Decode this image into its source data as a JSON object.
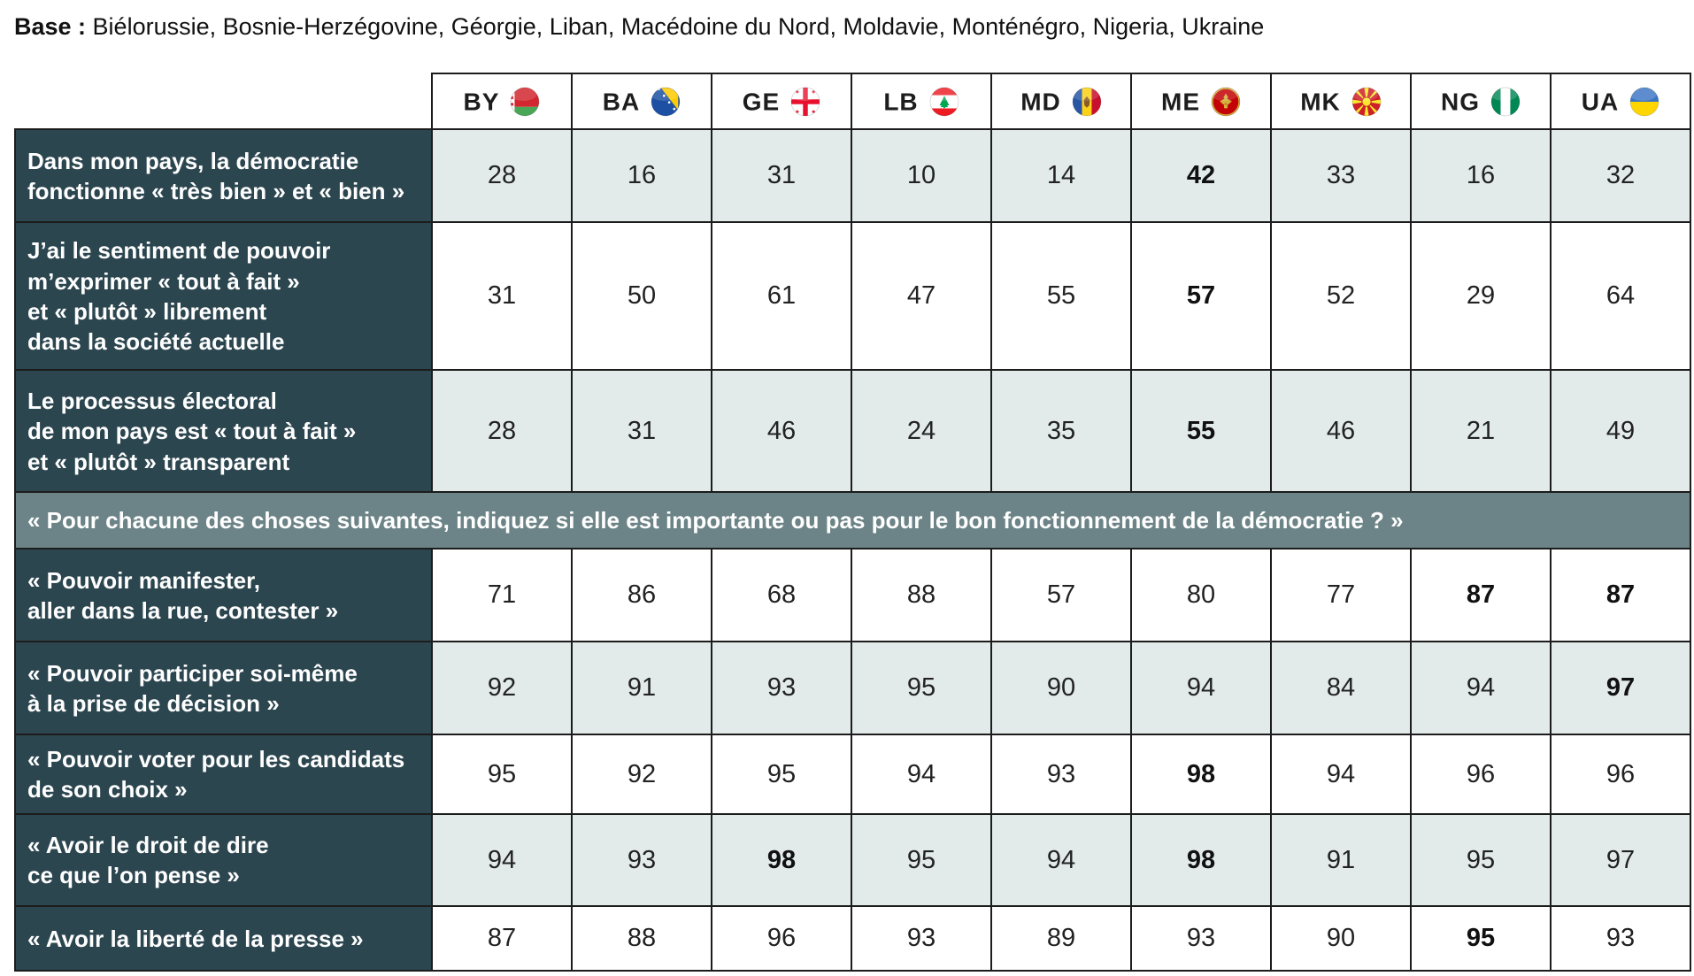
{
  "page": {
    "base_label": "Base :",
    "base_text": " Biélorussie, Bosnie-Herzégovine, Géorgie, Liban, Macédoine du Nord, Moldavie, Monténégro, Nigeria, Ukraine"
  },
  "colors": {
    "label_cell_bg": "#2c4650",
    "section_bg": "#6c8487",
    "light_row_bg": "#e2ebea",
    "border": "#1c1c1c"
  },
  "table": {
    "columns": [
      {
        "code": "BY",
        "flag": "belarus-flag-icon"
      },
      {
        "code": "BA",
        "flag": "bosnia-herzegovina-flag-icon"
      },
      {
        "code": "GE",
        "flag": "georgia-flag-icon"
      },
      {
        "code": "LB",
        "flag": "lebanon-flag-icon"
      },
      {
        "code": "MD",
        "flag": "moldova-flag-icon"
      },
      {
        "code": "ME",
        "flag": "montenegro-flag-icon"
      },
      {
        "code": "MK",
        "flag": "north-macedonia-flag-icon"
      },
      {
        "code": "NG",
        "flag": "nigeria-flag-icon"
      },
      {
        "code": "UA",
        "flag": "ukraine-flag-icon"
      }
    ],
    "rows": [
      {
        "label": "Dans mon pays, la démocratie\nfonctionne « très bien » et « bien »",
        "values": [
          "28",
          "16",
          "31",
          "10",
          "14",
          "42",
          "33",
          "16",
          "32"
        ],
        "bold": [
          5
        ],
        "shade": "light"
      },
      {
        "label": "J’ai le sentiment de pouvoir\nm’exprimer « tout à fait »\net « plutôt » librement\ndans la société actuelle",
        "values": [
          "31",
          "50",
          "61",
          "47",
          "55",
          "57",
          "52",
          "29",
          "64"
        ],
        "bold": [
          5
        ],
        "shade": "white"
      },
      {
        "label": "Le processus électoral\nde mon pays est « tout à fait »\net « plutôt » transparent",
        "values": [
          "28",
          "31",
          "46",
          "24",
          "35",
          "55",
          "46",
          "21",
          "49"
        ],
        "bold": [
          5
        ],
        "shade": "light"
      },
      {
        "type": "section",
        "label": "« Pour chacune des choses suivantes, indiquez si elle est importante ou pas pour le bon fonctionnement de la démocratie ? »"
      },
      {
        "label": "« Pouvoir manifester,\naller dans la rue, contester »",
        "values": [
          "71",
          "86",
          "68",
          "88",
          "57",
          "80",
          "77",
          "87",
          "87"
        ],
        "bold": [
          7,
          8
        ],
        "shade": "white"
      },
      {
        "label": "« Pouvoir participer soi-même\nà la prise de décision »",
        "values": [
          "92",
          "91",
          "93",
          "95",
          "90",
          "94",
          "84",
          "94",
          "97"
        ],
        "bold": [
          8
        ],
        "shade": "light"
      },
      {
        "label": "« Pouvoir voter pour les candidats\nde son choix »",
        "values": [
          "95",
          "92",
          "95",
          "94",
          "93",
          "98",
          "94",
          "96",
          "96"
        ],
        "bold": [
          5
        ],
        "shade": "white"
      },
      {
        "label": "« Avoir le droit de dire\nce que l’on pense »",
        "values": [
          "94",
          "93",
          "98",
          "95",
          "94",
          "98",
          "91",
          "95",
          "97"
        ],
        "bold": [
          2,
          5
        ],
        "shade": "light"
      },
      {
        "label": "« Avoir la liberté de la presse »",
        "values": [
          "87",
          "88",
          "96",
          "93",
          "89",
          "93",
          "90",
          "95",
          "93"
        ],
        "bold": [
          7
        ],
        "shade": "white"
      }
    ]
  }
}
